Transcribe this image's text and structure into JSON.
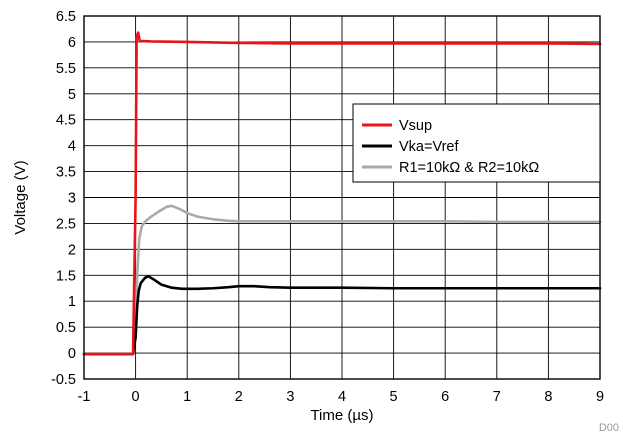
{
  "chart_data": {
    "type": "line",
    "title": "",
    "xlabel": "Time (µs)",
    "ylabel": "Voltage (V)",
    "xlim": [
      -1,
      9
    ],
    "ylim": [
      -0.5,
      6.5
    ],
    "x_ticks": [
      "-1",
      "0",
      "1",
      "2",
      "3",
      "4",
      "5",
      "6",
      "7",
      "8",
      "9"
    ],
    "y_ticks": [
      "6.5",
      "6",
      "5.5",
      "5",
      "4.5",
      "4",
      "3.5",
      "3",
      "2.5",
      "2",
      "1.5",
      "1",
      "0.5",
      "0",
      "-0.5"
    ],
    "grid": true,
    "legend_position": "center-right",
    "series": [
      {
        "name": "Vsup",
        "color": "#e8141a",
        "x": [
          -1,
          -0.05,
          0,
          0.02,
          0.05,
          0.08,
          0.3,
          1,
          2,
          3,
          4,
          5,
          6,
          7,
          8,
          9
        ],
        "y": [
          -0.02,
          -0.02,
          3.0,
          6.1,
          6.18,
          6.02,
          6.01,
          6.0,
          5.98,
          5.97,
          5.97,
          5.97,
          5.97,
          5.97,
          5.97,
          5.96
        ]
      },
      {
        "name": "Vka=Vref",
        "color": "#000000",
        "x": [
          -1,
          -0.05,
          0,
          0.03,
          0.06,
          0.1,
          0.18,
          0.25,
          0.35,
          0.5,
          0.7,
          0.9,
          1.2,
          1.5,
          1.8,
          2.0,
          2.3,
          2.6,
          3,
          4,
          5,
          6,
          7,
          8,
          9
        ],
        "y": [
          -0.02,
          -0.02,
          0.3,
          0.9,
          1.2,
          1.35,
          1.45,
          1.48,
          1.42,
          1.32,
          1.26,
          1.24,
          1.24,
          1.25,
          1.27,
          1.29,
          1.29,
          1.27,
          1.26,
          1.26,
          1.25,
          1.25,
          1.25,
          1.25,
          1.25
        ]
      },
      {
        "name": "R1=10kΩ & R2=10kΩ",
        "color": "#aaaaaa",
        "x": [
          -1,
          -0.05,
          0,
          0.03,
          0.07,
          0.12,
          0.2,
          0.3,
          0.45,
          0.6,
          0.7,
          0.85,
          1.0,
          1.2,
          1.5,
          1.8,
          2.0,
          3,
          4,
          5,
          6,
          7,
          8,
          9
        ],
        "y": [
          -0.02,
          -0.02,
          0.5,
          1.5,
          2.2,
          2.45,
          2.55,
          2.63,
          2.73,
          2.82,
          2.84,
          2.78,
          2.7,
          2.63,
          2.58,
          2.55,
          2.54,
          2.54,
          2.54,
          2.54,
          2.54,
          2.53,
          2.53,
          2.53
        ]
      }
    ]
  },
  "watermark": "D00"
}
